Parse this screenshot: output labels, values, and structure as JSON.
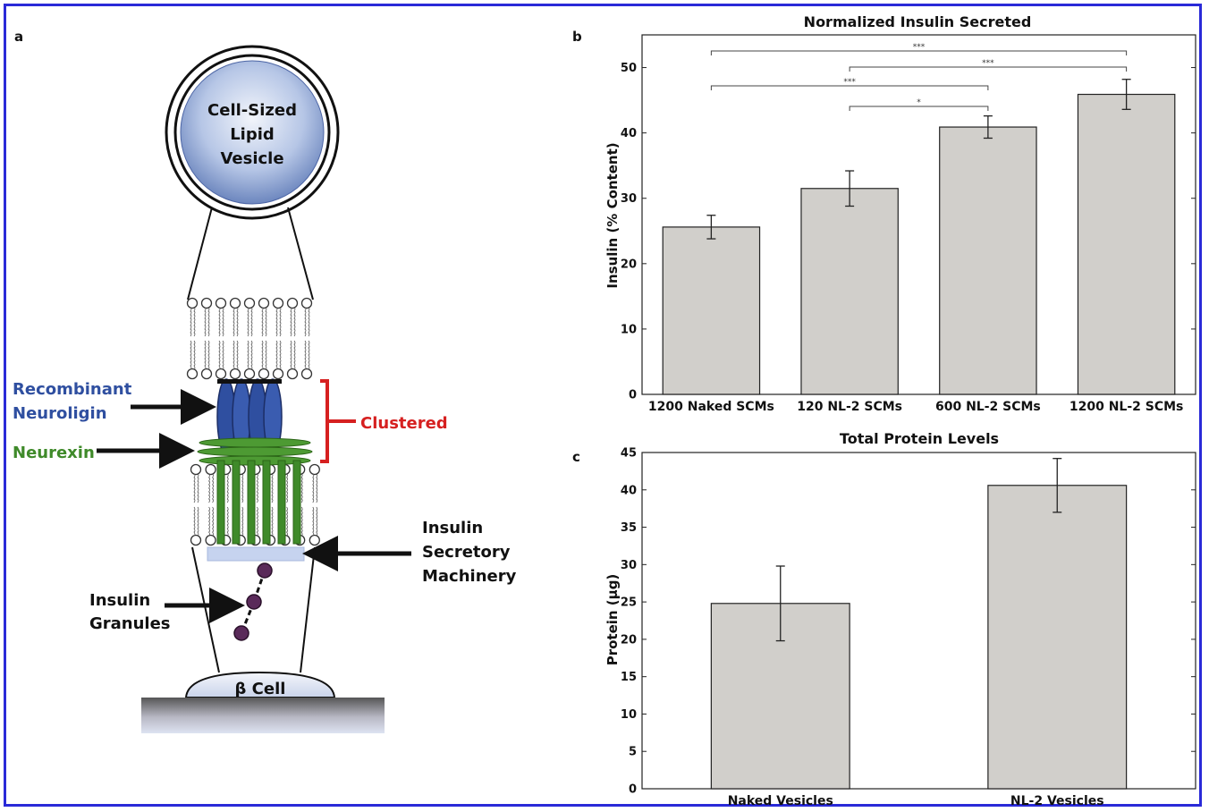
{
  "panels": {
    "a": "a",
    "b": "b",
    "c": "c"
  },
  "diagram": {
    "vesicle_line1": "Cell-Sized",
    "vesicle_line2": "Lipid",
    "vesicle_line3": "Vesicle",
    "recombinant": "Recombinant",
    "neuroligin": "Neuroligin",
    "neurexin": "Neurexin",
    "clustered": "Clustered",
    "secretory_line1": "Insulin",
    "secretory_line2": "Secretory",
    "secretory_line3": "Machinery",
    "granules_line1": "Insulin",
    "granules_line2": "Granules",
    "beta_cell": "β Cell",
    "colors": {
      "neuroligin": "#2f4fa0",
      "neurexin": "#3f8a2a",
      "clustered": "#d62020"
    }
  },
  "chart_data": [
    {
      "type": "bar",
      "title": "Normalized Insulin Secreted",
      "ylabel": "Insulin (% Content)",
      "xlabel": "",
      "categories": [
        "1200 Naked SCMs",
        "120 NL-2 SCMs",
        "600 NL-2 SCMs",
        "1200 NL-2 SCMs"
      ],
      "values": [
        25.6,
        31.5,
        40.9,
        45.9
      ],
      "errors": [
        1.8,
        2.7,
        1.7,
        2.3
      ],
      "ylim": [
        0,
        55
      ],
      "yticks": [
        0,
        10,
        20,
        30,
        40,
        50
      ],
      "bar_color": "#d1cfcb",
      "significance": [
        {
          "from": 0,
          "to": 3,
          "label": "***"
        },
        {
          "from": 1,
          "to": 3,
          "label": "***"
        },
        {
          "from": 0,
          "to": 2,
          "label": "***"
        },
        {
          "from": 1,
          "to": 2,
          "label": "*"
        }
      ]
    },
    {
      "type": "bar",
      "title": "Total Protein Levels",
      "ylabel": "Protein (μg)",
      "xlabel": "",
      "categories": [
        "Naked Vesicles",
        "NL-2 Vesicles"
      ],
      "values": [
        24.8,
        40.6
      ],
      "errors": [
        5.0,
        3.6
      ],
      "ylim": [
        0,
        45
      ],
      "yticks": [
        0,
        5,
        10,
        15,
        20,
        25,
        30,
        35,
        40,
        45
      ],
      "bar_color": "#d1cfcb"
    }
  ]
}
